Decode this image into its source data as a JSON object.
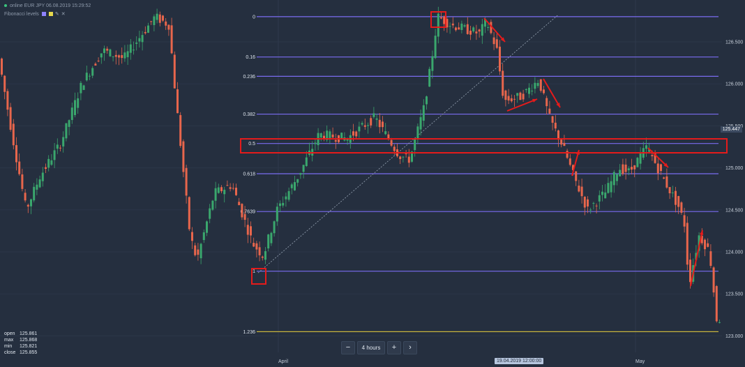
{
  "header": {
    "instrument": "online EUR JPY 06.08.2019 15:29:52",
    "indicator": "Fibonacci levels",
    "colors": [
      "#8f83ff",
      "#e6d84c"
    ],
    "tools": [
      "pencil-icon",
      "close-icon"
    ]
  },
  "chart_data": {
    "type": "candlestick",
    "y_axis": {
      "ticks": [
        "126.500",
        "126.000",
        "125.500",
        "125.000",
        "124.500",
        "124.000",
        "123.500",
        "123.000"
      ],
      "range": [
        122.97,
        126.88
      ],
      "current_price": "125.447"
    },
    "x_axis": {
      "ticks": [
        "April",
        "May"
      ],
      "crosshair": "19.04.2019 12:00:00"
    },
    "fibonacci": {
      "levels": [
        {
          "label": "0",
          "price": 126.8
        },
        {
          "label": "0.16",
          "price": 126.32
        },
        {
          "label": "0.236",
          "price": 126.09
        },
        {
          "label": "0.382",
          "price": 125.64
        },
        {
          "label": "0.5",
          "price": 125.29
        },
        {
          "label": "0.618",
          "price": 124.93
        },
        {
          "label": "0.7639",
          "price": 124.48
        },
        {
          "label": "1",
          "price": 123.77
        },
        {
          "label": "1.236",
          "price": 123.05
        }
      ],
      "level_color": "#7a6cf0",
      "extension_color": "#c8b43c"
    },
    "ohlc": [
      {
        "k": "open",
        "v": "125.861"
      },
      {
        "k": "max",
        "v": "125.868"
      },
      {
        "k": "min",
        "v": "125.821"
      },
      {
        "k": "close",
        "v": "125.855"
      }
    ],
    "colors": {
      "up": "#3aa76d",
      "down": "#e8664c",
      "annotation": "#e51b1b"
    }
  },
  "controls": {
    "minus": "−",
    "timeframe": "4 hours",
    "plus": "+",
    "next": "›"
  }
}
